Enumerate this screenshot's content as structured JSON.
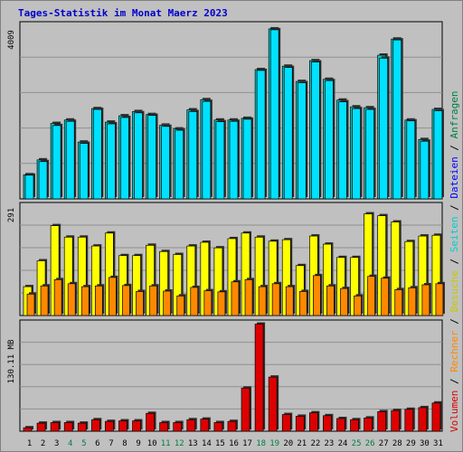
{
  "title": "Tages-Statistik im Monat Maerz 2023",
  "colors": {
    "anfragen": "#00cccc",
    "dateien": "#00e0ff",
    "seiten": "#0000ff",
    "besuche": "#ffff00",
    "rechner": "#ff8800",
    "volumen": "#dd0000",
    "weekend": "#008040",
    "background": "#c0c0c0"
  },
  "chart_data": [
    {
      "type": "bar",
      "panel": "top",
      "y_tick_label": "4009",
      "ylim": [
        0,
        4009
      ],
      "categories": [
        "1",
        "2",
        "3",
        "4",
        "5",
        "6",
        "7",
        "8",
        "9",
        "10",
        "11",
        "12",
        "13",
        "14",
        "15",
        "16",
        "17",
        "18",
        "19",
        "20",
        "21",
        "22",
        "23",
        "24",
        "25",
        "26",
        "27",
        "28",
        "29",
        "30",
        "31"
      ],
      "series": [
        {
          "name": "Anfragen",
          "values": [
            570,
            920,
            1780,
            1860,
            1340,
            2130,
            1810,
            1960,
            2060,
            1990,
            1740,
            1650,
            2100,
            2340,
            1860,
            1860,
            1900,
            3050,
            4010,
            3130,
            2770,
            3260,
            2820,
            2330,
            2170,
            2150,
            3390,
            3770,
            1860,
            1400,
            2110
          ]
        },
        {
          "name": "Dateien",
          "values": [
            560,
            880,
            1730,
            1830,
            1310,
            2110,
            1770,
            1920,
            2030,
            1970,
            1710,
            1620,
            2060,
            2300,
            1820,
            1830,
            1880,
            3030,
            3990,
            3100,
            2740,
            3230,
            2790,
            2290,
            2130,
            2110,
            3320,
            3750,
            1840,
            1360,
            2080
          ]
        }
      ]
    },
    {
      "type": "bar",
      "panel": "middle",
      "y_tick_label": "291",
      "ylim": [
        0,
        291
      ],
      "categories": [
        "1",
        "2",
        "3",
        "4",
        "5",
        "6",
        "7",
        "8",
        "9",
        "10",
        "11",
        "12",
        "13",
        "14",
        "15",
        "16",
        "17",
        "18",
        "19",
        "20",
        "21",
        "22",
        "23",
        "24",
        "25",
        "26",
        "27",
        "28",
        "29",
        "30",
        "31"
      ],
      "series": [
        {
          "name": "Seiten",
          "values": [
            0,
            0,
            0,
            0,
            0,
            0,
            0,
            0,
            0,
            0,
            0,
            0,
            0,
            0,
            0,
            0,
            0,
            0,
            0,
            0,
            0,
            0,
            0,
            0,
            0,
            0,
            0,
            0,
            0,
            0,
            0
          ]
        },
        {
          "name": "Besuche",
          "values": [
            78,
            148,
            243,
            212,
            212,
            188,
            223,
            162,
            162,
            190,
            173,
            165,
            188,
            198,
            183,
            208,
            223,
            212,
            201,
            205,
            135,
            215,
            193,
            157,
            157,
            275,
            270,
            253,
            200,
            215,
            217
          ]
        },
        {
          "name": "Rechner",
          "values": [
            58,
            80,
            97,
            86,
            78,
            80,
            103,
            81,
            65,
            80,
            66,
            53,
            76,
            67,
            64,
            91,
            97,
            78,
            86,
            78,
            65,
            108,
            80,
            73,
            53,
            106,
            101,
            70,
            75,
            83,
            86
          ]
        }
      ]
    },
    {
      "type": "bar",
      "panel": "bottom",
      "y_tick_label": "130.11 MB",
      "ylim": [
        0,
        190
      ],
      "categories": [
        "1",
        "2",
        "3",
        "4",
        "5",
        "6",
        "7",
        "8",
        "9",
        "10",
        "11",
        "12",
        "13",
        "14",
        "15",
        "16",
        "17",
        "18",
        "19",
        "20",
        "21",
        "22",
        "23",
        "24",
        "25",
        "26",
        "27",
        "28",
        "29",
        "30",
        "31"
      ],
      "series": [
        {
          "name": "Volumen",
          "values": [
            6,
            14,
            15,
            15,
            14,
            20,
            17,
            18,
            18,
            31,
            15,
            15,
            20,
            21,
            15,
            17,
            75,
            186,
            94,
            29,
            26,
            32,
            27,
            22,
            20,
            23,
            34,
            36,
            38,
            41,
            49
          ]
        }
      ]
    }
  ],
  "weekend_days": [
    "4",
    "5",
    "11",
    "12",
    "18",
    "19",
    "25",
    "26"
  ],
  "legend_right": [
    {
      "label": "Volumen",
      "color": "#dd0000"
    },
    {
      "label": "Rechner",
      "color": "#ff8800"
    },
    {
      "label": "Besuche",
      "color": "#c8c800"
    },
    {
      "label": "Seiten",
      "color": "#00cccc"
    },
    {
      "label": "Dateien",
      "color": "#0000ff"
    },
    {
      "label": "Anfragen",
      "color": "#008040"
    }
  ],
  "separators": [
    "/",
    "/",
    "/",
    "/",
    "/"
  ]
}
